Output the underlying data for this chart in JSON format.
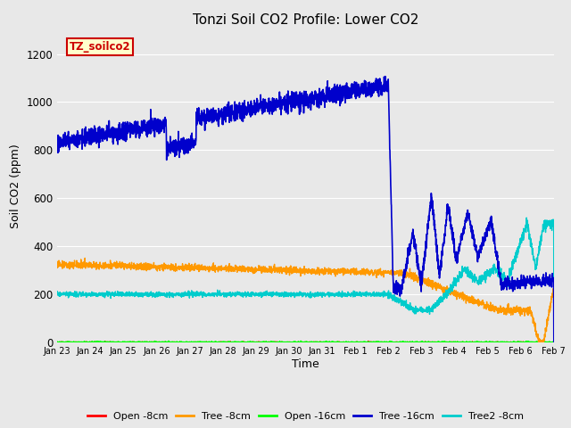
{
  "title": "Tonzi Soil CO2 Profile: Lower CO2",
  "xlabel": "Time",
  "ylabel": "Soil CO2 (ppm)",
  "ylim": [
    0,
    1300
  ],
  "yticks": [
    0,
    200,
    400,
    600,
    800,
    1000,
    1200
  ],
  "fig_bg_color": "#e8e8e8",
  "plot_bg_color": "#e8e8e8",
  "grid_color": "#ffffff",
  "legend_label": "TZ_soilco2",
  "legend_bg": "#ffffcc",
  "legend_border": "#cc0000",
  "series": {
    "open_8cm": {
      "color": "#ff0000",
      "label": "Open -8cm"
    },
    "tree_8cm": {
      "color": "#ff9900",
      "label": "Tree -8cm"
    },
    "open_16cm": {
      "color": "#00ff00",
      "label": "Open -16cm"
    },
    "tree_16cm": {
      "color": "#0000cc",
      "label": "Tree -16cm"
    },
    "tree2_8cm": {
      "color": "#00cccc",
      "label": "Tree2 -8cm"
    }
  },
  "date_start": 0,
  "date_end": 15.0,
  "xtick_labels": [
    "Jan 23",
    "Jan 24",
    "Jan 25",
    "Jan 26",
    "Jan 27",
    "Jan 28",
    "Jan 29",
    "Jan 30",
    "Jan 31",
    "Feb 1",
    "Feb 2",
    "Feb 3",
    "Feb 4",
    "Feb 5",
    "Feb 6",
    "Feb 7"
  ],
  "xtick_positions": [
    0,
    1,
    2,
    3,
    4,
    5,
    6,
    7,
    8,
    9,
    10,
    11,
    12,
    13,
    14,
    15
  ]
}
